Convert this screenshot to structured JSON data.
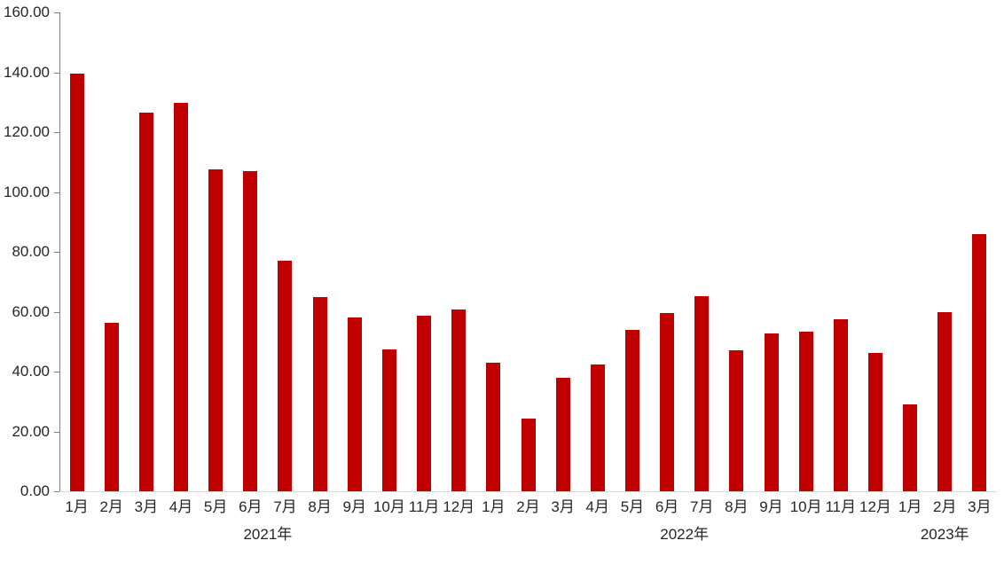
{
  "chart_data": {
    "type": "bar",
    "title": "",
    "legend": null,
    "grid": "off",
    "background": "#ffffff",
    "bar_color": "#c00000",
    "axis_line_color": "#808080",
    "baseline_color": "#d9d9d9",
    "text_color": "#262626",
    "ylim": [
      0,
      160
    ],
    "y_tick_step": 20,
    "y_tick_labels": [
      "0.00",
      "20.00",
      "40.00",
      "60.00",
      "80.00",
      "100.00",
      "120.00",
      "140.00",
      "160.00"
    ],
    "groups": [
      {
        "year": "2021年",
        "months": [
          "1月",
          "2月",
          "3月",
          "4月",
          "5月",
          "6月",
          "7月",
          "8月",
          "9月",
          "10月",
          "11月",
          "12月"
        ],
        "values": [
          139.6,
          56.3,
          126.6,
          129.8,
          107.5,
          106.9,
          77.0,
          65.0,
          58.0,
          47.3,
          58.8,
          60.7
        ]
      },
      {
        "year": "2022年",
        "months": [
          "1月",
          "2月",
          "3月",
          "4月",
          "5月",
          "6月",
          "7月",
          "8月",
          "9月",
          "10月",
          "11月",
          "12月"
        ],
        "values": [
          43.0,
          24.2,
          37.8,
          42.4,
          53.8,
          59.7,
          65.1,
          47.1,
          52.7,
          53.2,
          57.6,
          46.3
        ]
      },
      {
        "year": "2023年",
        "months": [
          "1月",
          "2月",
          "3月"
        ],
        "values": [
          28.9,
          59.9,
          85.8
        ]
      }
    ]
  },
  "layout_note": ""
}
